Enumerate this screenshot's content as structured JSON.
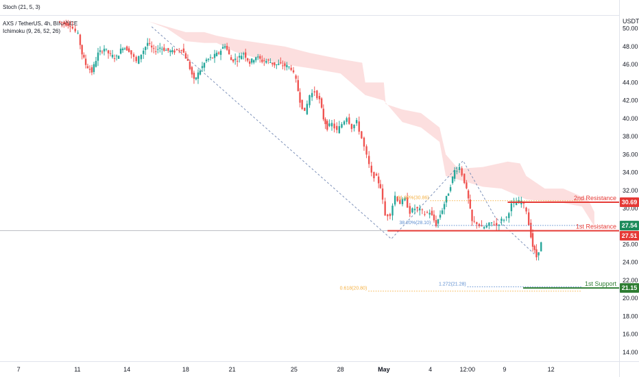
{
  "legend": {
    "stoch": "Stoch (21, 5, 3)",
    "symbol": "AXS / TetherUS, 4h, BINANCE",
    "ichimoku": "Ichimoku (9, 26, 52, 26)"
  },
  "colors": {
    "up": "#26a69a",
    "down": "#ef5350",
    "cloud": "#fcd9d9",
    "resistance": "#e53935",
    "support": "#2e7d32",
    "fib_orange": "#f5b041",
    "fib_blue": "#5b8ccf",
    "current_line": "#9598a1"
  },
  "chart_data": {
    "type": "candlestick",
    "currency_label": "USDT",
    "y_range": [
      13,
      51.5
    ],
    "y_ticks": [
      "14.00",
      "16.00",
      "18.00",
      "20.00",
      "22.00",
      "24.00",
      "26.00",
      "28.00",
      "30.00",
      "32.00",
      "34.00",
      "36.00",
      "38.00",
      "40.00",
      "42.00",
      "44.00",
      "46.00",
      "48.00",
      "50.00"
    ],
    "x_range": [
      0,
      100
    ],
    "x_ticks": [
      {
        "label": "7",
        "x": 3
      },
      {
        "label": "11",
        "x": 12.5
      },
      {
        "label": "14",
        "x": 20.5
      },
      {
        "label": "18",
        "x": 30
      },
      {
        "label": "21",
        "x": 37.5
      },
      {
        "label": "25",
        "x": 47.5
      },
      {
        "label": "28",
        "x": 55
      },
      {
        "label": "May",
        "x": 62
      },
      {
        "label": "4",
        "x": 69.5
      },
      {
        "label": "12:00",
        "x": 75.5
      },
      {
        "label": "9",
        "x": 81.5
      },
      {
        "label": "12",
        "x": 89
      }
    ],
    "path": [
      [
        9.5,
        50.8
      ],
      [
        10.5,
        50.6
      ],
      [
        11.5,
        50.4
      ],
      [
        12.8,
        49.3
      ],
      [
        13.4,
        47.2
      ],
      [
        14,
        46.0
      ],
      [
        15,
        45.2
      ],
      [
        16,
        47.2
      ],
      [
        17,
        47.8
      ],
      [
        18,
        47.0
      ],
      [
        19,
        46.8
      ],
      [
        20,
        48.0
      ],
      [
        21,
        47.6
      ],
      [
        22.2,
        46.3
      ],
      [
        23,
        47.2
      ],
      [
        24,
        48.4
      ],
      [
        25,
        47.5
      ],
      [
        26,
        47.9
      ],
      [
        27,
        47.6
      ],
      [
        28,
        47.4
      ],
      [
        29.5,
        47.8
      ],
      [
        30.5,
        46.3
      ],
      [
        31.5,
        44.2
      ],
      [
        32.5,
        45.4
      ],
      [
        33.5,
        46.5
      ],
      [
        34.5,
        46.8
      ],
      [
        35.5,
        47.3
      ],
      [
        36.5,
        48.2
      ],
      [
        37.5,
        46.5
      ],
      [
        38.5,
        46.6
      ],
      [
        39.5,
        47.3
      ],
      [
        40.5,
        46.2
      ],
      [
        41.5,
        46.9
      ],
      [
        42.5,
        46.4
      ],
      [
        43.5,
        46.4
      ],
      [
        44.5,
        46.0
      ],
      [
        45.5,
        46.0
      ],
      [
        46.5,
        45.8
      ],
      [
        47.2,
        45.6
      ],
      [
        48,
        44.2
      ],
      [
        48.6,
        42.0
      ],
      [
        49.4,
        40.6
      ],
      [
        50.2,
        42.6
      ],
      [
        51,
        43.0
      ],
      [
        51.8,
        42.0
      ],
      [
        52.4,
        40.0
      ],
      [
        53,
        39.0
      ],
      [
        53.8,
        39.4
      ],
      [
        54.6,
        38.6
      ],
      [
        55.4,
        39.4
      ],
      [
        56.2,
        40.2
      ],
      [
        57,
        39.0
      ],
      [
        57.8,
        39.6
      ],
      [
        58.6,
        37.8
      ],
      [
        59.4,
        35.8
      ],
      [
        60.2,
        33.8
      ],
      [
        61,
        33.4
      ],
      [
        61.6,
        32.4
      ],
      [
        62.4,
        29.2
      ],
      [
        63.2,
        29.4
      ],
      [
        64,
        31.4
      ],
      [
        64.8,
        30.6
      ],
      [
        65.6,
        31.0
      ],
      [
        66.4,
        29.6
      ],
      [
        67.2,
        30.0
      ],
      [
        68,
        29.8
      ],
      [
        68.8,
        29.4
      ],
      [
        69.6,
        29.6
      ],
      [
        70.6,
        28.2
      ],
      [
        71.6,
        29.9
      ],
      [
        72.6,
        31.8
      ],
      [
        73.6,
        34.2
      ],
      [
        74.4,
        34.6
      ],
      [
        75.2,
        33.0
      ],
      [
        75.8,
        31.0
      ],
      [
        76.4,
        28.5
      ],
      [
        77.2,
        28.4
      ],
      [
        78,
        27.8
      ],
      [
        78.8,
        28.0
      ],
      [
        79.6,
        28.4
      ],
      [
        80.4,
        28.1
      ],
      [
        81.2,
        28.7
      ],
      [
        82,
        29.0
      ],
      [
        82.8,
        30.4
      ],
      [
        83.6,
        30.6
      ],
      [
        84.4,
        30.8
      ],
      [
        85.2,
        29.8
      ],
      [
        85.6,
        28.2
      ],
      [
        86.2,
        25.8
      ],
      [
        86.8,
        24.6
      ],
      [
        87.6,
        26.1
      ]
    ],
    "cloud_upper": [
      [
        24,
        50.8
      ],
      [
        27,
        50.2
      ],
      [
        30,
        49.6
      ],
      [
        33,
        49.6
      ],
      [
        35,
        49.2
      ],
      [
        38,
        48.8
      ],
      [
        42,
        48.4
      ],
      [
        46,
        48.0
      ],
      [
        50,
        47.3
      ],
      [
        55,
        46.6
      ],
      [
        58.5,
        46.2
      ],
      [
        59,
        44.0
      ],
      [
        62,
        44.0
      ],
      [
        62.3,
        41.6
      ],
      [
        65,
        41.0
      ],
      [
        68,
        40.6
      ],
      [
        71,
        39.0
      ],
      [
        72,
        36.0
      ],
      [
        74,
        34.4
      ],
      [
        78,
        34.6
      ],
      [
        82,
        35.2
      ],
      [
        84,
        35.0
      ],
      [
        85,
        33.6
      ],
      [
        88,
        32.2
      ],
      [
        91,
        32.2
      ],
      [
        93,
        31.6
      ],
      [
        95,
        31.0
      ],
      [
        96,
        29.6
      ]
    ],
    "cloud_lower": [
      [
        24,
        50.8
      ],
      [
        27,
        50.0
      ],
      [
        30,
        48.6
      ],
      [
        33,
        48.4
      ],
      [
        35,
        48.4
      ],
      [
        38,
        47.4
      ],
      [
        42,
        46.6
      ],
      [
        46,
        46.0
      ],
      [
        50,
        45.6
      ],
      [
        55,
        45.0
      ],
      [
        59,
        42.6
      ],
      [
        62,
        42.0
      ],
      [
        65,
        39.6
      ],
      [
        68,
        39.0
      ],
      [
        71,
        37.4
      ],
      [
        72,
        33.6
      ],
      [
        74,
        33.2
      ],
      [
        78,
        32.4
      ],
      [
        81,
        32.2
      ],
      [
        85,
        31.0
      ],
      [
        88,
        30.8
      ],
      [
        91,
        30.6
      ],
      [
        94,
        30.2
      ],
      [
        96,
        28.0
      ]
    ],
    "zigzag": [
      [
        24.5,
        50.2
      ],
      [
        63.2,
        26.6
      ],
      [
        74.8,
        35.3
      ],
      [
        80,
        29.0
      ],
      [
        86.8,
        24.6
      ]
    ],
    "levels": {
      "second_resistance": {
        "label": "2nd Resistance",
        "value": 30.69,
        "tag": "30.69",
        "x_start": 82
      },
      "first_resistance": {
        "label": "1st Resistance",
        "value": 27.51,
        "tag": "27.51",
        "x_start": 62.6
      },
      "first_support": {
        "label": "1st Support",
        "value": 21.15,
        "tag": "21.15",
        "x_start": 84.5
      },
      "current_price": {
        "value": 27.54,
        "tag": "27.54"
      }
    },
    "fib_labels": {
      "fib_618": {
        "text": "61.80%(30.86)",
        "value": 30.86,
        "x": 69.5,
        "x_end": 94
      },
      "fib_382": {
        "text": "38.20%(28.10)",
        "value": 28.1,
        "x": 69.8,
        "x_end": 94
      },
      "ext_1272": {
        "text": "1.272(21.28)",
        "value": 21.28,
        "x": 75.5,
        "x_end": 94
      },
      "ext_0618": {
        "text": "0.618(20.80)",
        "value": 20.8,
        "x": 59.5,
        "x_end": 94
      }
    }
  }
}
